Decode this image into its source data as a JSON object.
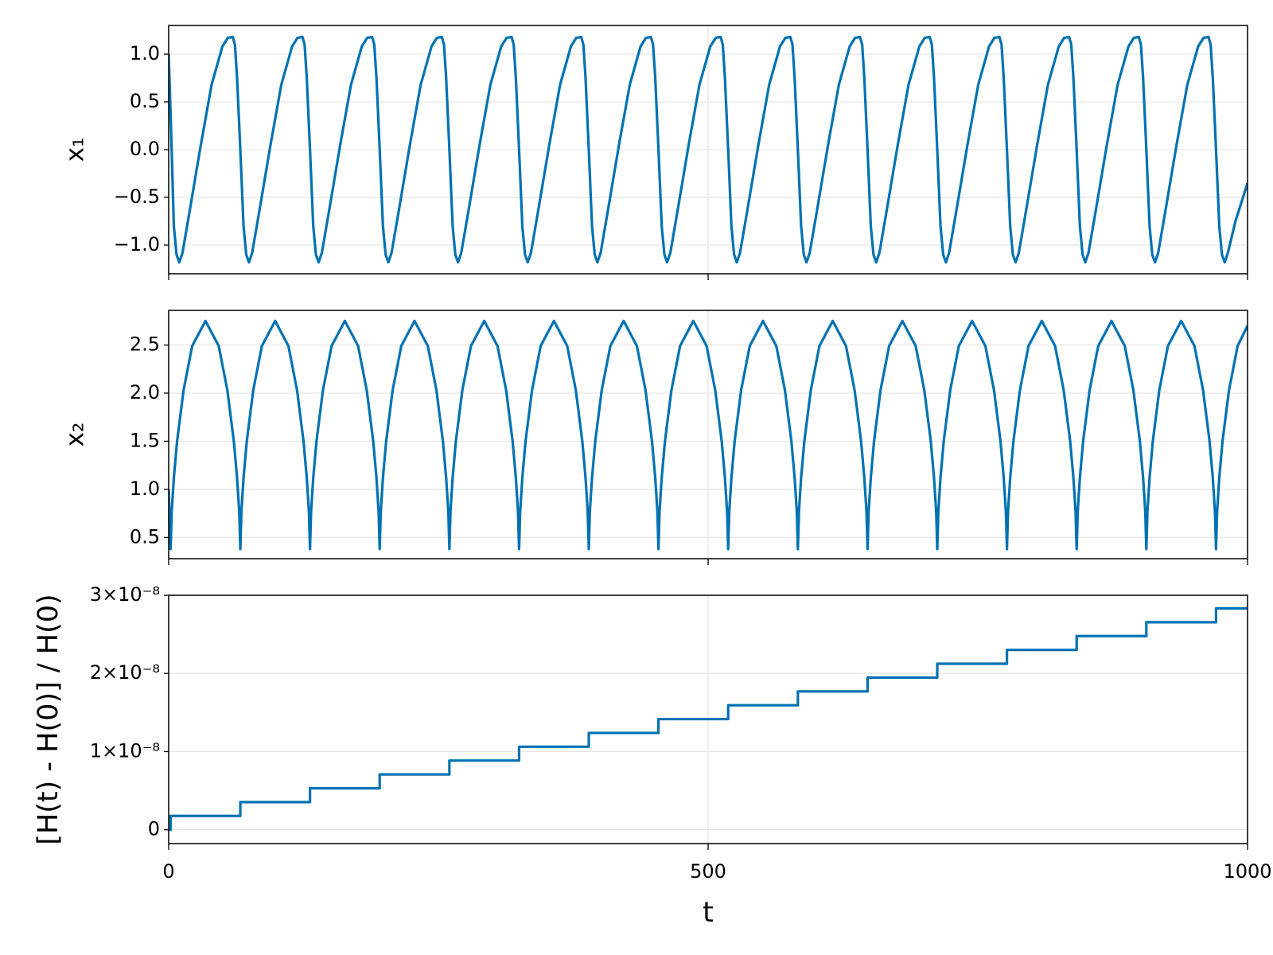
{
  "chart_data": [
    {
      "type": "line",
      "ylabel": "x₁",
      "color": "#0072b2",
      "grid": true,
      "xlim": [
        0,
        1000
      ],
      "xticks": [
        0,
        500,
        1000
      ],
      "ylim": [
        -1.3,
        1.3
      ],
      "yticks": [
        {
          "value": -1.0,
          "label": "−1.0"
        },
        {
          "value": -0.5,
          "label": "−0.5"
        },
        {
          "value": 0,
          "label": "0.0"
        },
        0.5,
        {
          "value": 1.0,
          "label": "1.0"
        }
      ],
      "x": [
        0,
        2,
        4.8,
        7.3,
        9.8,
        12.8,
        19.8,
        29.8,
        39.8,
        49.8,
        54.8,
        59.4,
        61.4,
        63.4,
        66.4,
        69.4,
        71.9,
        74.4,
        77.4,
        84.4,
        94.4,
        104.4,
        114.4,
        119.4,
        124,
        126,
        128,
        131,
        134,
        136.5,
        139,
        142,
        149,
        159,
        169,
        179,
        184,
        188.6,
        190.6,
        192.6,
        195.6,
        198.6,
        201.1,
        203.6,
        206.6,
        213.6,
        223.6,
        233.6,
        243.6,
        248.6,
        253.2,
        255.2,
        257.2,
        260.2,
        263.2,
        265.7,
        268.2,
        271.2,
        278.2,
        288.2,
        298.2,
        308.2,
        313.2,
        317.8,
        319.8,
        321.8,
        324.8,
        327.8,
        330.3,
        332.8,
        335.8,
        342.8,
        352.8,
        362.8,
        372.8,
        377.8,
        382.4,
        384.4,
        386.4,
        389.4,
        392.4,
        394.9,
        397.4,
        400.4,
        407.4,
        417.4,
        427.4,
        437.4,
        442.4,
        447,
        449,
        451,
        454,
        457,
        459.5,
        462,
        465,
        472,
        482,
        492,
        502,
        507,
        511.6,
        513.6,
        515.6,
        518.6,
        521.6,
        524.1,
        526.6,
        529.6,
        536.6,
        546.6,
        556.6,
        566.6,
        571.6,
        576.2,
        578.2,
        580.2,
        583.2,
        586.2,
        588.7,
        591.2,
        594.2,
        601.2,
        611.2,
        621.2,
        631.2,
        636.2,
        640.8,
        642.8,
        644.8,
        647.8,
        650.8,
        653.3,
        655.8,
        658.8,
        665.8,
        675.8,
        685.8,
        695.8,
        700.8,
        705.4,
        707.4,
        709.4,
        712.4,
        715.4,
        717.9,
        720.4,
        723.4,
        730.4,
        740.4,
        750.4,
        760.4,
        765.4,
        770,
        772,
        774,
        777,
        780,
        782.5,
        785,
        788,
        795,
        805,
        815,
        825,
        830,
        834.6,
        836.6,
        838.6,
        841.6,
        844.6,
        847.1,
        849.6,
        852.6,
        859.6,
        869.6,
        879.6,
        889.6,
        894.6,
        899.2,
        901.2,
        903.2,
        906.2,
        909.2,
        911.7,
        914.2,
        917.2,
        924.2,
        934.2,
        944.2,
        954.2,
        959.2,
        963.8,
        965.8,
        967.8,
        970.8,
        973.8,
        976.3,
        978.8,
        981.8,
        988.8,
        1000
      ],
      "values": [
        1.0,
        0.3,
        -0.8,
        -1.1,
        -1.18,
        -1.08,
        -0.62,
        0.05,
        0.68,
        1.08,
        1.17,
        1.18,
        1.1,
        0.75,
        0,
        -0.8,
        -1.1,
        -1.18,
        -1.08,
        -0.62,
        0.05,
        0.68,
        1.08,
        1.17,
        1.18,
        1.1,
        0.75,
        0,
        -0.8,
        -1.1,
        -1.18,
        -1.08,
        -0.62,
        0.05,
        0.68,
        1.08,
        1.17,
        1.18,
        1.1,
        0.75,
        0,
        -0.8,
        -1.1,
        -1.18,
        -1.08,
        -0.62,
        0.05,
        0.68,
        1.08,
        1.17,
        1.18,
        1.1,
        0.75,
        0,
        -0.8,
        -1.1,
        -1.18,
        -1.08,
        -0.62,
        0.05,
        0.68,
        1.08,
        1.17,
        1.18,
        1.1,
        0.75,
        0,
        -0.8,
        -1.1,
        -1.18,
        -1.08,
        -0.62,
        0.05,
        0.68,
        1.08,
        1.17,
        1.18,
        1.1,
        0.75,
        0,
        -0.8,
        -1.1,
        -1.18,
        -1.08,
        -0.62,
        0.05,
        0.68,
        1.08,
        1.17,
        1.18,
        1.1,
        0.75,
        0,
        -0.8,
        -1.1,
        -1.18,
        -1.08,
        -0.62,
        0.05,
        0.68,
        1.08,
        1.17,
        1.18,
        1.1,
        0.75,
        0,
        -0.8,
        -1.1,
        -1.18,
        -1.08,
        -0.62,
        0.05,
        0.68,
        1.08,
        1.17,
        1.18,
        1.1,
        0.75,
        0,
        -0.8,
        -1.1,
        -1.18,
        -1.08,
        -0.62,
        0.05,
        0.68,
        1.08,
        1.17,
        1.18,
        1.1,
        0.75,
        0,
        -0.8,
        -1.1,
        -1.18,
        -1.08,
        -0.62,
        0.05,
        0.68,
        1.08,
        1.17,
        1.18,
        1.1,
        0.75,
        0,
        -0.8,
        -1.1,
        -1.18,
        -1.08,
        -0.62,
        0.05,
        0.68,
        1.08,
        1.17,
        1.18,
        1.1,
        0.75,
        0,
        -0.8,
        -1.1,
        -1.18,
        -1.08,
        -0.62,
        0.05,
        0.68,
        1.08,
        1.17,
        1.18,
        1.1,
        0.75,
        0,
        -0.8,
        -1.1,
        -1.18,
        -1.08,
        -0.62,
        0.05,
        0.68,
        1.08,
        1.17,
        1.18,
        1.1,
        0.75,
        0,
        -0.8,
        -1.1,
        -1.18,
        -1.08,
        -0.62,
        0.05,
        0.68,
        1.08,
        1.17,
        1.18,
        1.1,
        0.75,
        0,
        -0.8,
        -1.1,
        -1.18,
        -1.08,
        -0.75,
        -0.35
      ]
    },
    {
      "type": "line",
      "ylabel": "x₂",
      "color": "#0072b2",
      "grid": true,
      "xlim": [
        0,
        1000
      ],
      "xticks": [
        0,
        500,
        1000
      ],
      "ylim": [
        0.28,
        2.86
      ],
      "yticks": [
        0.5,
        {
          "value": 1.0,
          "label": "1.0"
        },
        1.5,
        {
          "value": 2.0,
          "label": "2.0"
        },
        2.5
      ],
      "x": [
        0,
        1.8,
        2.8,
        4.8,
        7.8,
        13.8,
        21.8,
        34.1,
        46.4,
        54.4,
        60.4,
        63.4,
        65.4,
        66.4,
        67.4,
        69.4,
        72.4,
        78.4,
        86.4,
        98.7,
        111,
        119,
        125,
        128,
        130,
        131,
        132,
        134,
        137,
        143,
        151,
        163.3,
        175.6,
        183.6,
        189.6,
        192.6,
        194.6,
        195.6,
        196.6,
        198.6,
        201.6,
        207.6,
        215.6,
        227.9,
        240.2,
        248.2,
        254.2,
        257.2,
        259.2,
        260.2,
        261.2,
        263.2,
        266.2,
        272.2,
        280.2,
        292.5,
        304.8,
        312.8,
        318.8,
        321.8,
        323.8,
        324.8,
        325.8,
        327.8,
        330.8,
        336.8,
        344.8,
        357.1,
        369.4,
        377.4,
        383.4,
        386.4,
        388.4,
        389.4,
        390.4,
        392.4,
        395.4,
        401.4,
        409.4,
        421.7,
        434,
        442,
        448,
        451,
        453,
        454,
        455,
        457,
        460,
        466,
        474,
        486.3,
        498.6,
        506.6,
        512.6,
        515.6,
        517.6,
        518.6,
        519.6,
        521.6,
        524.6,
        530.6,
        538.6,
        550.9,
        563.2,
        571.2,
        577.2,
        580.2,
        582.2,
        583.2,
        584.2,
        586.2,
        589.2,
        595.2,
        603.2,
        615.5,
        627.8,
        635.8,
        641.8,
        644.8,
        646.8,
        647.8,
        648.8,
        650.8,
        653.8,
        659.8,
        667.8,
        680.1,
        692.4,
        700.4,
        706.4,
        709.4,
        711.4,
        712.4,
        713.4,
        715.4,
        718.4,
        724.4,
        732.4,
        744.7,
        757,
        765,
        771,
        774,
        776,
        777,
        778,
        780,
        783,
        789,
        797,
        809.3,
        821.6,
        829.6,
        835.6,
        838.6,
        840.6,
        841.6,
        842.6,
        844.6,
        847.6,
        853.6,
        861.6,
        873.9,
        886.2,
        894.2,
        900.2,
        903.2,
        905.2,
        906.2,
        907.2,
        909.2,
        912.2,
        918.2,
        926.2,
        938.5,
        950.8,
        958.8,
        964.8,
        967.8,
        969.8,
        970.8,
        971.8,
        973.8,
        976.8,
        982.8,
        990.8,
        1000
      ],
      "values": [
        1.0,
        0.38,
        0.77,
        1.12,
        1.5,
        2.03,
        2.49,
        2.75,
        2.49,
        2.03,
        1.5,
        1.12,
        0.77,
        0.38,
        0.77,
        1.12,
        1.5,
        2.03,
        2.49,
        2.75,
        2.49,
        2.03,
        1.5,
        1.12,
        0.77,
        0.38,
        0.77,
        1.12,
        1.5,
        2.03,
        2.49,
        2.75,
        2.49,
        2.03,
        1.5,
        1.12,
        0.77,
        0.38,
        0.77,
        1.12,
        1.5,
        2.03,
        2.49,
        2.75,
        2.49,
        2.03,
        1.5,
        1.12,
        0.77,
        0.38,
        0.77,
        1.12,
        1.5,
        2.03,
        2.49,
        2.75,
        2.49,
        2.03,
        1.5,
        1.12,
        0.77,
        0.38,
        0.77,
        1.12,
        1.5,
        2.03,
        2.49,
        2.75,
        2.49,
        2.03,
        1.5,
        1.12,
        0.77,
        0.38,
        0.77,
        1.12,
        1.5,
        2.03,
        2.49,
        2.75,
        2.49,
        2.03,
        1.5,
        1.12,
        0.77,
        0.38,
        0.77,
        1.12,
        1.5,
        2.03,
        2.49,
        2.75,
        2.49,
        2.03,
        1.5,
        1.12,
        0.77,
        0.38,
        0.77,
        1.12,
        1.5,
        2.03,
        2.49,
        2.75,
        2.49,
        2.03,
        1.5,
        1.12,
        0.77,
        0.38,
        0.77,
        1.12,
        1.5,
        2.03,
        2.49,
        2.75,
        2.49,
        2.03,
        1.5,
        1.12,
        0.77,
        0.38,
        0.77,
        1.12,
        1.5,
        2.03,
        2.49,
        2.75,
        2.49,
        2.03,
        1.5,
        1.12,
        0.77,
        0.38,
        0.77,
        1.12,
        1.5,
        2.03,
        2.49,
        2.75,
        2.49,
        2.03,
        1.5,
        1.12,
        0.77,
        0.38,
        0.77,
        1.12,
        1.5,
        2.03,
        2.49,
        2.75,
        2.49,
        2.03,
        1.5,
        1.12,
        0.77,
        0.38,
        0.77,
        1.12,
        1.5,
        2.03,
        2.49,
        2.75,
        2.49,
        2.03,
        1.5,
        1.12,
        0.77,
        0.38,
        0.77,
        1.12,
        1.5,
        2.03,
        2.49,
        2.75,
        2.49,
        2.03,
        1.5,
        1.12,
        0.77,
        0.38,
        0.77,
        1.12,
        1.5,
        2.03,
        2.49,
        2.7
      ]
    },
    {
      "type": "line",
      "ylabel": "[H(t) - H(0)] / H(0)",
      "xlabel": "t",
      "color": "#0072b2",
      "grid": true,
      "xlim": [
        0,
        1000
      ],
      "xticks": [
        0,
        500,
        1000
      ],
      "ylim": [
        -1.77e-09,
        3e-08
      ],
      "yticks": [
        0,
        {
          "value": 1e-08,
          "label": "1×10⁻⁸"
        },
        {
          "value": 2e-08,
          "label": "2×10⁻⁸"
        },
        {
          "value": 3e-08,
          "label": "3×10⁻⁸"
        }
      ],
      "x": [
        0,
        1.8,
        1.8,
        66.4,
        66.4,
        131,
        131,
        195.6,
        195.6,
        260.2,
        260.2,
        324.8,
        324.8,
        389.4,
        389.4,
        454,
        454,
        518.6,
        518.6,
        583.2,
        583.2,
        647.8,
        647.8,
        712.4,
        712.4,
        777,
        777,
        841.6,
        841.6,
        906.2,
        906.2,
        970.8,
        970.8,
        1000
      ],
      "values": [
        0,
        0,
        1.77e-09,
        1.77e-09,
        3.54e-09,
        3.54e-09,
        5.31e-09,
        5.31e-09,
        7.08e-09,
        7.08e-09,
        8.85e-09,
        8.85e-09,
        1.062e-08,
        1.062e-08,
        1.239e-08,
        1.239e-08,
        1.416e-08,
        1.416e-08,
        1.593e-08,
        1.593e-08,
        1.77e-08,
        1.77e-08,
        1.947e-08,
        1.947e-08,
        2.124e-08,
        2.124e-08,
        2.301e-08,
        2.301e-08,
        2.478e-08,
        2.478e-08,
        2.655e-08,
        2.655e-08,
        2.832e-08,
        2.832e-08
      ]
    }
  ]
}
